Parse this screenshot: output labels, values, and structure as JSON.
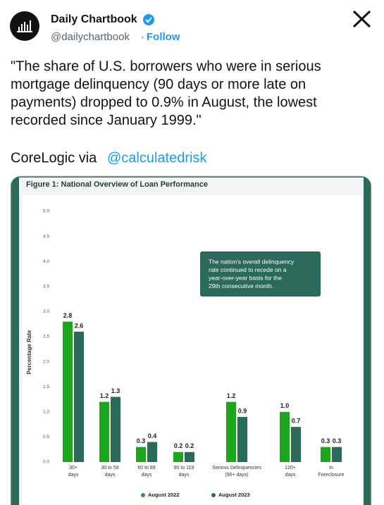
{
  "tweet": {
    "name": "Daily Chartbook",
    "handle": "@dailychartbook",
    "separator": "·",
    "follow": "Follow",
    "text_lines": [
      "\"The share of U.S. borrowers who were in serious",
      "mortgage delinquency (90 days or more late on",
      "payments) dropped to 0.9% in August, the lowest",
      "recorded since January 1999.\""
    ],
    "source_prefix": "CoreLogic via",
    "source_link": "@calculatedrisk"
  },
  "chart_data": {
    "type": "bar",
    "title": "Figure 1: National Overview of Loan Performance",
    "y_label": "Percentage Rate",
    "annotation": [
      "The nation's overall delinquency",
      "rate continued to recede on a",
      "year-over-year basis for the",
      "29th consecutive month."
    ],
    "categories": [
      [
        "30+",
        "days"
      ],
      [
        "30 to 59",
        "days"
      ],
      [
        "60 to 89",
        "days"
      ],
      [
        "90 to 119",
        "days"
      ],
      [
        "Serious Delinquencies",
        "(90+ days)"
      ],
      [
        "120+",
        "days"
      ],
      [
        "In",
        "Foreclosure"
      ]
    ],
    "series": [
      {
        "name": "August 2022",
        "color": "#1ea51e",
        "values": [
          2.8,
          1.2,
          0.3,
          0.2,
          1.2,
          1.0,
          0.3
        ],
        "value_labels": [
          "2.8",
          "1.2",
          "0.3",
          "0.2",
          "1.2",
          "1.0",
          "0.3"
        ]
      },
      {
        "name": "August 2023",
        "color": "#2b6a5b",
        "values": [
          2.6,
          1.3,
          0.4,
          0.2,
          0.9,
          0.7,
          0.3
        ],
        "value_labels": [
          "2.6",
          "1.3",
          "0.4",
          "0.2",
          "0.9",
          "0.7",
          "0.3"
        ]
      }
    ],
    "ylim": [
      0,
      5
    ],
    "yticks": [
      {
        "value": 0,
        "label": "0.0"
      },
      {
        "value": 0.5,
        "label": "0.5"
      },
      {
        "value": 1,
        "label": "1.0"
      },
      {
        "value": 1.5,
        "label": "1.5"
      },
      {
        "value": 2,
        "label": "2.0"
      },
      {
        "value": 2.5,
        "label": "2.5"
      },
      {
        "value": 3,
        "label": "3.0"
      },
      {
        "value": 3.5,
        "label": "3.5"
      },
      {
        "value": 4,
        "label": "4.0"
      },
      {
        "value": 4.5,
        "label": "4.5"
      },
      {
        "value": 5,
        "label": "5.0"
      }
    ],
    "grid": false
  }
}
